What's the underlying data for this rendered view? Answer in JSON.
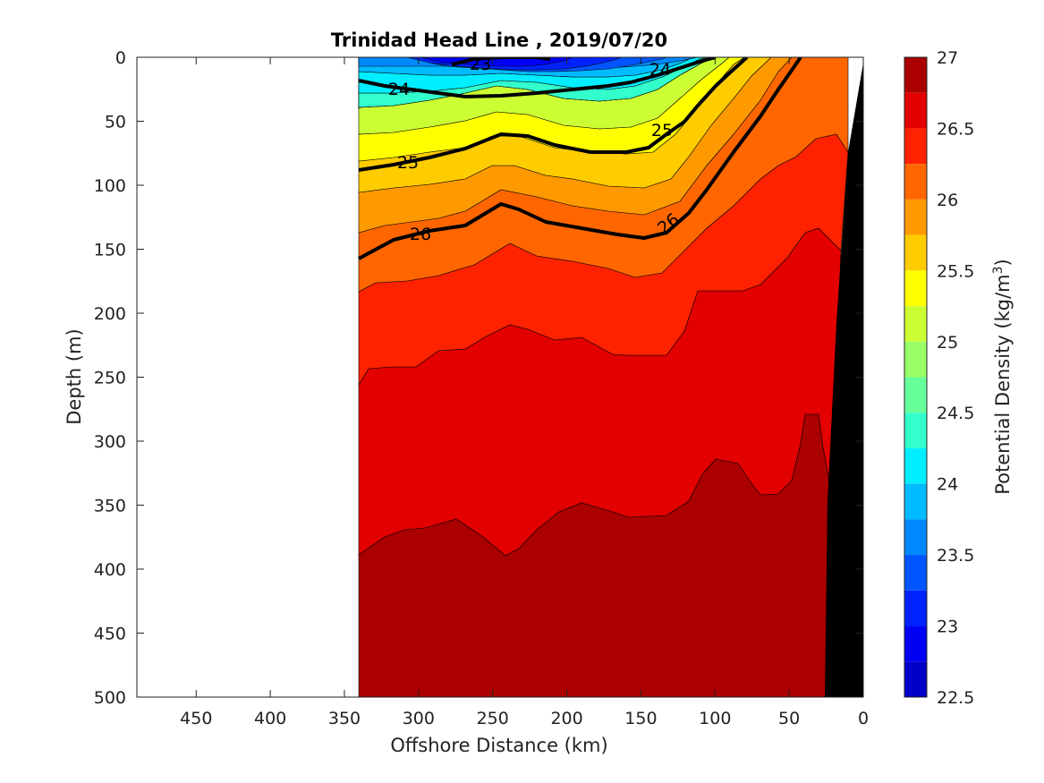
{
  "chart_data": {
    "type": "contour",
    "title": "Trinidad Head Line , 2019/07/20",
    "xlabel": "Offshore Distance (km)",
    "ylabel": "Depth (m)",
    "xlim": [
      490,
      0
    ],
    "ylim": [
      0,
      500
    ],
    "x_reversed": true,
    "y_reversed": true,
    "x_ticks": [
      "450",
      "400",
      "350",
      "300",
      "250",
      "200",
      "150",
      "100",
      "50",
      "0"
    ],
    "y_ticks": [
      "0",
      "50",
      "100",
      "150",
      "200",
      "250",
      "300",
      "350",
      "400",
      "450",
      "500"
    ],
    "colorbar": {
      "label_main": "Potential Density (kg/m",
      "label_exp": "3",
      "label_close": ")",
      "range": [
        22.5,
        27
      ],
      "ticks": [
        "27",
        "26.5",
        "26",
        "25.5",
        "25",
        "24.5",
        "24",
        "23.5",
        "23",
        "22.5"
      ]
    },
    "data_extent_km": [
      340,
      0
    ],
    "bottom_fill_color": "#000000",
    "contour_labels": [
      "23",
      "24",
      "24",
      "25",
      "25",
      "26",
      "26"
    ],
    "isopycnals": [
      {
        "level": 24.0,
        "points": [
          [
            340,
            18
          ],
          [
            320,
            25
          ],
          [
            300,
            27
          ],
          [
            275,
            30
          ],
          [
            250,
            31
          ],
          [
            230,
            30
          ],
          [
            200,
            28
          ],
          [
            170,
            25
          ],
          [
            140,
            18
          ],
          [
            110,
            12
          ],
          [
            90,
            8
          ],
          [
            70,
            3
          ],
          [
            60,
            0
          ]
        ]
      },
      {
        "level": 25.0,
        "points": [
          [
            340,
            88
          ],
          [
            320,
            85
          ],
          [
            300,
            80
          ],
          [
            280,
            74
          ],
          [
            260,
            63
          ],
          [
            240,
            62
          ],
          [
            225,
            66
          ],
          [
            200,
            72
          ],
          [
            185,
            75
          ],
          [
            160,
            72
          ],
          [
            140,
            62
          ],
          [
            115,
            52
          ],
          [
            100,
            30
          ],
          [
            90,
            22
          ],
          [
            75,
            10
          ],
          [
            65,
            0
          ]
        ]
      },
      {
        "level": 26.0,
        "points": [
          [
            340,
            157
          ],
          [
            325,
            145
          ],
          [
            305,
            140
          ],
          [
            285,
            135
          ],
          [
            255,
            128
          ],
          [
            240,
            116
          ],
          [
            230,
            120
          ],
          [
            210,
            130
          ],
          [
            185,
            135
          ],
          [
            160,
            140
          ],
          [
            140,
            140
          ],
          [
            120,
            132
          ],
          [
            105,
            112
          ],
          [
            85,
            80
          ],
          [
            70,
            50
          ],
          [
            55,
            18
          ],
          [
            42,
            0
          ]
        ]
      }
    ],
    "colormap": [
      {
        "range": [
          22.5,
          22.75
        ],
        "color": "#000099"
      },
      {
        "range": [
          22.75,
          23.0
        ],
        "color": "#0000C8"
      },
      {
        "range": [
          23.0,
          23.25
        ],
        "color": "#0000F5"
      },
      {
        "range": [
          23.25,
          23.5
        ],
        "color": "#0022FF"
      },
      {
        "range": [
          23.5,
          23.75
        ],
        "color": "#0055FF"
      },
      {
        "range": [
          23.75,
          24.0
        ],
        "color": "#0088FF"
      },
      {
        "range": [
          24.0,
          24.25
        ],
        "color": "#00BBFF"
      },
      {
        "range": [
          24.25,
          24.5
        ],
        "color": "#00EEFF"
      },
      {
        "range": [
          24.5,
          24.75
        ],
        "color": "#33FFCC"
      },
      {
        "range": [
          24.75,
          25.0
        ],
        "color": "#66FF99"
      },
      {
        "range": [
          25.0,
          25.25
        ],
        "color": "#99FF66"
      },
      {
        "range": [
          25.25,
          25.5
        ],
        "color": "#CCFF33"
      },
      {
        "range": [
          25.5,
          25.75
        ],
        "color": "#FFFF00"
      },
      {
        "range": [
          25.75,
          26.0
        ],
        "color": "#FFCC00"
      },
      {
        "range": [
          26.0,
          26.25
        ],
        "color": "#FF9900"
      },
      {
        "range": [
          26.25,
          26.5
        ],
        "color": "#FF6600"
      },
      {
        "range": [
          26.5,
          26.75
        ],
        "color": "#FF2200"
      },
      {
        "range": [
          26.75,
          27.0
        ],
        "color": "#E20000"
      },
      {
        "range": [
          27.0,
          27.25
        ],
        "color": "#AA0000"
      }
    ]
  }
}
